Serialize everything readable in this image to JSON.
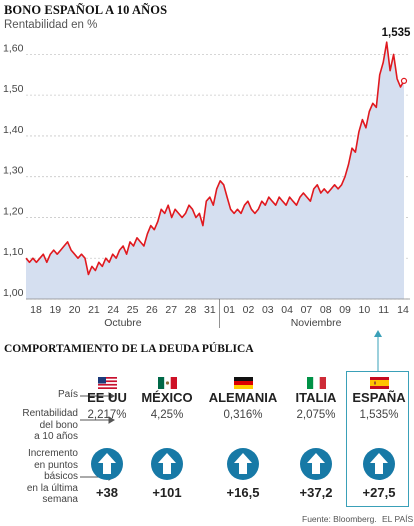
{
  "title": "BONO ESPAÑOL A 10 AÑOS",
  "subtitle": "Rentabilidad en %",
  "chart_data": {
    "type": "area",
    "title": "BONO ESPAÑOL A 10 AÑOS",
    "ylabel": "Rentabilidad en %",
    "ylim": [
      1.0,
      1.65
    ],
    "yticks": [
      "1,00",
      "1,10",
      "1,20",
      "1,30",
      "1,40",
      "1,50",
      "1,60"
    ],
    "ytick_values": [
      1.0,
      1.1,
      1.2,
      1.3,
      1.4,
      1.5,
      1.6
    ],
    "xticks": [
      "18",
      "19",
      "20",
      "21",
      "24",
      "25",
      "26",
      "27",
      "28",
      "31",
      "01",
      "02",
      "03",
      "04",
      "07",
      "08",
      "09",
      "10",
      "11",
      "14"
    ],
    "month_labels": [
      "Octubre",
      "Noviembre"
    ],
    "grid": true,
    "last_value_label": "1,535",
    "series": [
      {
        "values": [
          1.1,
          1.09,
          1.1,
          1.09,
          1.1,
          1.11,
          1.09,
          1.11,
          1.12,
          1.11,
          1.12,
          1.13,
          1.14,
          1.12,
          1.11,
          1.1,
          1.11,
          1.1,
          1.06,
          1.08,
          1.07,
          1.09,
          1.08,
          1.1,
          1.09,
          1.11,
          1.1,
          1.12,
          1.13,
          1.11,
          1.14,
          1.13,
          1.15,
          1.14,
          1.13,
          1.16,
          1.18,
          1.17,
          1.19,
          1.22,
          1.21,
          1.23,
          1.2,
          1.22,
          1.21,
          1.2,
          1.21,
          1.23,
          1.22,
          1.2,
          1.21,
          1.18,
          1.24,
          1.25,
          1.23,
          1.27,
          1.29,
          1.28,
          1.25,
          1.22,
          1.21,
          1.22,
          1.21,
          1.23,
          1.24,
          1.22,
          1.21,
          1.22,
          1.24,
          1.23,
          1.25,
          1.24,
          1.23,
          1.25,
          1.24,
          1.23,
          1.25,
          1.24,
          1.23,
          1.25,
          1.26,
          1.25,
          1.24,
          1.27,
          1.28,
          1.26,
          1.27,
          1.26,
          1.27,
          1.28,
          1.27,
          1.28,
          1.3,
          1.33,
          1.37,
          1.36,
          1.41,
          1.44,
          1.42,
          1.46,
          1.48,
          1.47,
          1.55,
          1.58,
          1.63,
          1.56,
          1.6,
          1.54,
          1.52,
          1.535
        ]
      }
    ]
  },
  "table": {
    "section_title": "COMPORTAMIENTO DE LA DEUDA PÚBLICA",
    "row_labels": {
      "country": "País",
      "yield": [
        "Rentabilidad",
        "del bono",
        "a 10 años"
      ],
      "increase": [
        "Incremento",
        "en puntos",
        "básicos",
        "en la última",
        "semana"
      ]
    },
    "countries": [
      {
        "name": "EE UU",
        "yield": "2,217%",
        "increase": "+38",
        "flag": "usa"
      },
      {
        "name": "MÉXICO",
        "yield": "4,25%",
        "increase": "+101",
        "flag": "mexico"
      },
      {
        "name": "ALEMANIA",
        "yield": "0,316%",
        "increase": "+16,5",
        "flag": "germany"
      },
      {
        "name": "ITALIA",
        "yield": "2,075%",
        "increase": "+37,2",
        "flag": "italy"
      },
      {
        "name": "ESPAÑA",
        "yield": "1,535%",
        "increase": "+27,5",
        "flag": "spain"
      }
    ],
    "arrow_icon": "arrow-up-icon",
    "arrow_color": "#1779a6",
    "highlight_color": "#3aa0b8"
  },
  "footer": {
    "source": "Fuente: Bloomberg.",
    "brand": "EL PAÍS"
  },
  "colors": {
    "line": "#e0191f",
    "area": "#d5dff0",
    "grid": "#c9c9c9"
  }
}
